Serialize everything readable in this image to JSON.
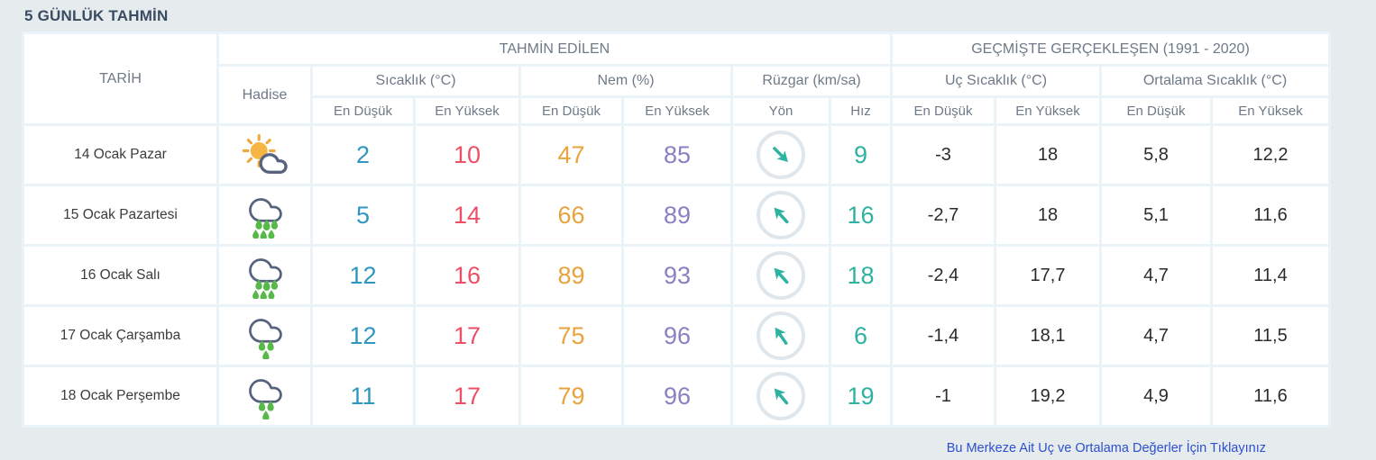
{
  "page": {
    "title": "5 GÜNLÜK TAHMİN",
    "footer_link": "Bu Merkeze Ait Uç ve Ortalama Değerler İçin Tıklayınız"
  },
  "table": {
    "headers": {
      "date": "TARİH",
      "predicted": "TAHMİN EDİLEN",
      "past": "GEÇMİŞTE GERÇEKLEŞEN (1991 - 2020)",
      "condition": "Hadise",
      "temperature": "Sıcaklık (°C)",
      "humidity": "Nem (%)",
      "wind": "Rüzgar (km/sa)",
      "extreme_temp": "Uç Sıcaklık (°C)",
      "avg_temp": "Ortalama Sıcaklık (°C)",
      "min": "En Düşük",
      "max": "En Yüksek",
      "direction": "Yön",
      "speed": "Hız"
    },
    "rows": [
      {
        "date": "14 Ocak Pazar",
        "icon": "sun-cloud",
        "temp_min": "2",
        "temp_max": "10",
        "hum_min": "47",
        "hum_max": "85",
        "wind_dir": "southeast",
        "wind_dir_deg": 135,
        "wind_speed": "9",
        "past_min": "-3",
        "past_max": "18",
        "avg_min": "5,8",
        "avg_max": "12,2"
      },
      {
        "date": "15 Ocak Pazartesi",
        "icon": "rain-heavy",
        "temp_min": "5",
        "temp_max": "14",
        "hum_min": "66",
        "hum_max": "89",
        "wind_dir": "northwest",
        "wind_dir_deg": -42,
        "wind_speed": "16",
        "past_min": "-2,7",
        "past_max": "18",
        "avg_min": "5,1",
        "avg_max": "11,6"
      },
      {
        "date": "16 Ocak Salı",
        "icon": "rain-heavy",
        "temp_min": "12",
        "temp_max": "16",
        "hum_min": "89",
        "hum_max": "93",
        "wind_dir": "northwest",
        "wind_dir_deg": -42,
        "wind_speed": "18",
        "past_min": "-2,4",
        "past_max": "17,7",
        "avg_min": "4,7",
        "avg_max": "11,4"
      },
      {
        "date": "17 Ocak Çarşamba",
        "icon": "rain-light",
        "temp_min": "12",
        "temp_max": "17",
        "hum_min": "75",
        "hum_max": "96",
        "wind_dir": "northwest",
        "wind_dir_deg": -35,
        "wind_speed": "6",
        "past_min": "-1,4",
        "past_max": "18,1",
        "avg_min": "4,7",
        "avg_max": "11,5"
      },
      {
        "date": "18 Ocak Perşembe",
        "icon": "rain-light",
        "temp_min": "11",
        "temp_max": "17",
        "hum_min": "79",
        "hum_max": "96",
        "wind_dir": "northwest",
        "wind_dir_deg": -40,
        "wind_speed": "19",
        "past_min": "-1",
        "past_max": "19,2",
        "avg_min": "4,9",
        "avg_max": "11,6"
      }
    ],
    "colors": {
      "temp_min": "#2e96bf",
      "temp_max": "#ee4f66",
      "hum_min": "#e8a33c",
      "hum_max": "#8a80c2",
      "wind": "#2eb2a1",
      "link": "#2d4fd0"
    }
  }
}
